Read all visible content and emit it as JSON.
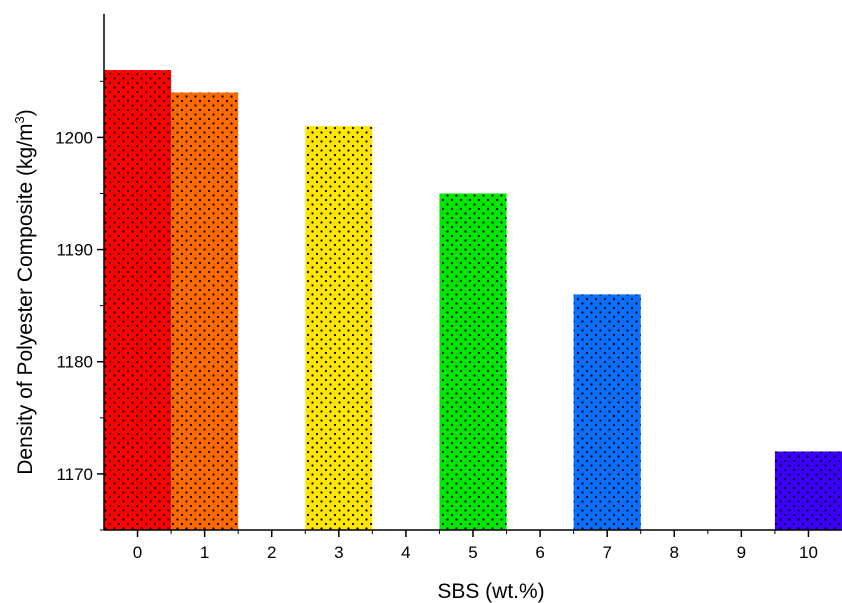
{
  "chart_data": {
    "type": "bar",
    "title": "",
    "xlabel": "SBS (wt.%)",
    "ylabel": "Density of Polyester Composite (kg/m³)",
    "ylabel_main": "Density of Polyester Composite (kg/m",
    "ylabel_sup": "3",
    "ylabel_end": ")",
    "x_ticks": [
      "0",
      "1",
      "2",
      "3",
      "4",
      "5",
      "6",
      "7",
      "8",
      "9",
      "10"
    ],
    "y_ticks": [
      "1170",
      "1180",
      "1190",
      "1200"
    ],
    "y_tick_values": [
      1170,
      1180,
      1190,
      1200
    ],
    "xlim": [
      -0.5,
      10.5
    ],
    "ylim": [
      1165,
      1211
    ],
    "grid": false,
    "pattern": "black dots",
    "bars": [
      {
        "x": 0,
        "value": 1206,
        "color": "#ff0000"
      },
      {
        "x": 1,
        "value": 1204,
        "color": "#ff6a00"
      },
      {
        "x": 3,
        "value": 1201,
        "color": "#ffe600"
      },
      {
        "x": 5,
        "value": 1195,
        "color": "#00e600"
      },
      {
        "x": 7,
        "value": 1186,
        "color": "#0a6fff"
      },
      {
        "x": 10,
        "value": 1172,
        "color": "#3a00ff"
      }
    ]
  }
}
